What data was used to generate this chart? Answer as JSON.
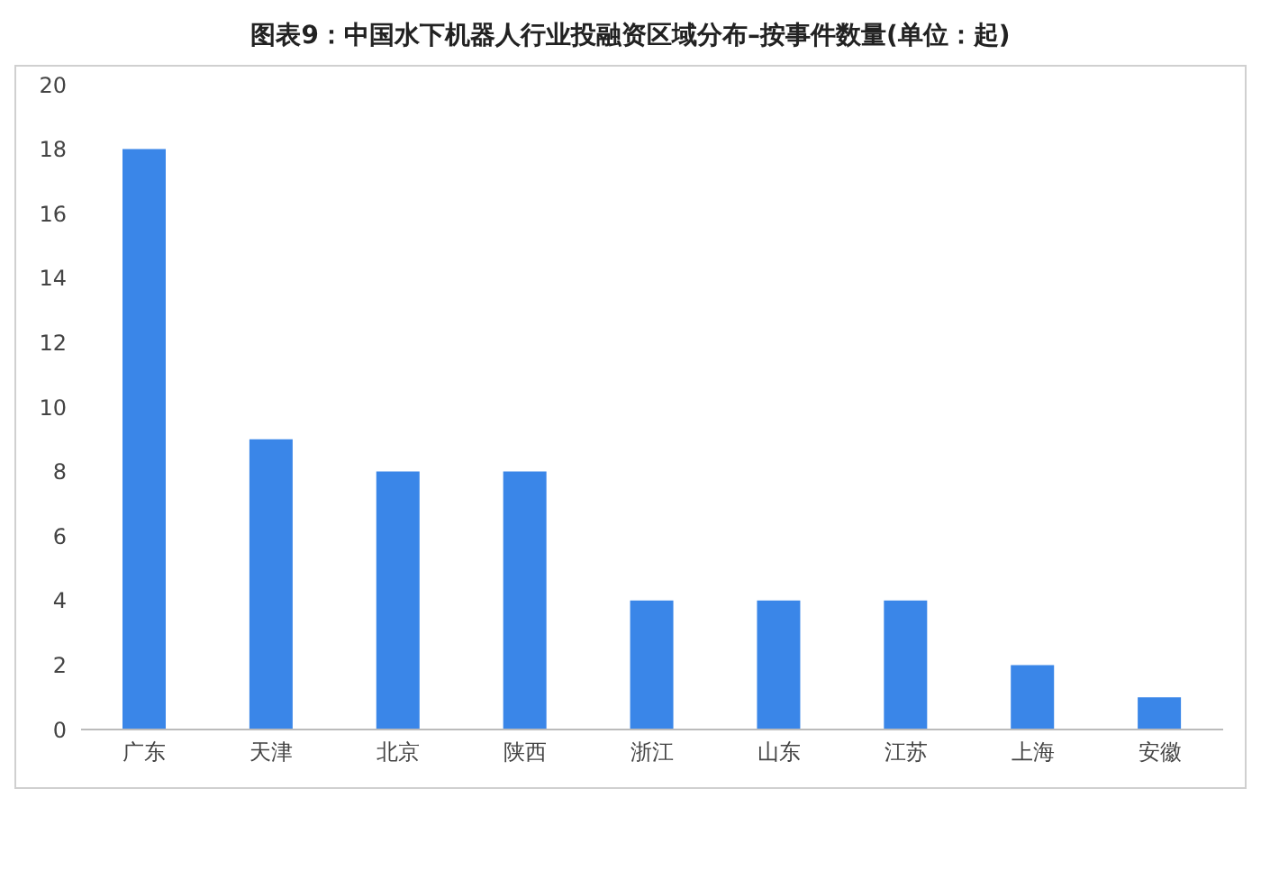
{
  "chart_data": {
    "type": "bar",
    "title": "图表9：中国水下机器人行业投融资区域分布–按事件数量(单位：起)",
    "categories": [
      "广东",
      "天津",
      "北京",
      "陕西",
      "浙江",
      "山东",
      "江苏",
      "上海",
      "安徽"
    ],
    "values": [
      18,
      9,
      8,
      8,
      4,
      4,
      4,
      2,
      1
    ],
    "color": "#3a86e8",
    "ylim": [
      0,
      20
    ],
    "yticks": [
      0,
      2,
      4,
      6,
      8,
      10,
      12,
      14,
      16,
      18,
      20
    ],
    "grid": false
  }
}
